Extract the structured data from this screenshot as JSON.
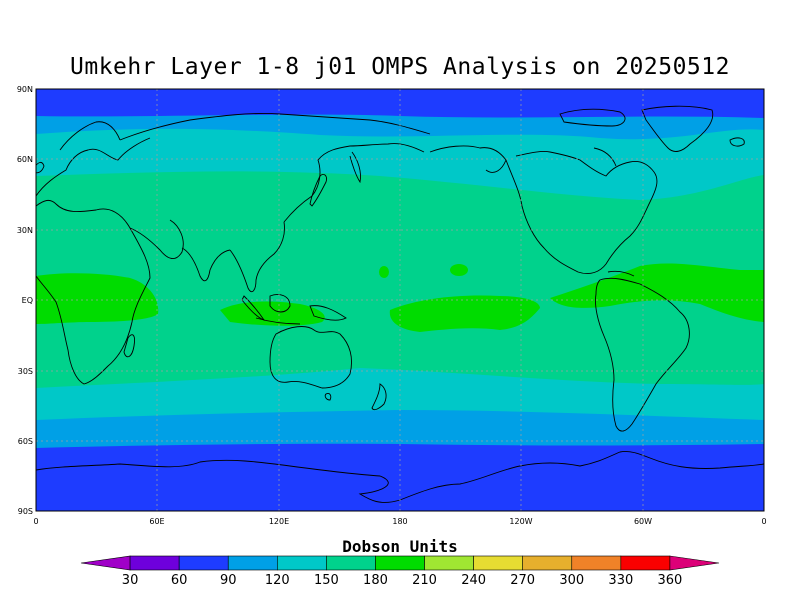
{
  "title": "Umkehr Layer 1-8 j01 OMPS Analysis on 20250512",
  "lat_labels": [
    "90N",
    "60N",
    "30N",
    "EQ",
    "30S",
    "60S",
    "90S"
  ],
  "lon_labels": [
    "0",
    "60E",
    "120E",
    "180",
    "120W",
    "60W",
    "0"
  ],
  "colorbar": {
    "title": "Dobson Units",
    "ticks": [
      "30",
      "60",
      "90",
      "120",
      "150",
      "180",
      "210",
      "240",
      "270",
      "300",
      "330",
      "360"
    ],
    "colors": [
      "#a000c8",
      "#6e00dc",
      "#1e3cff",
      "#00a0e6",
      "#00c8c8",
      "#00d28c",
      "#00dc00",
      "#a0e632",
      "#e6dc32",
      "#e6af2d",
      "#f08228",
      "#fa0000",
      "#dc0078"
    ]
  },
  "chart_data": {
    "type": "contour-map",
    "projection": "cylindrical equidistant",
    "lon_range": [
      0,
      360
    ],
    "lat_range": [
      -90,
      90
    ],
    "units": "Dobson Units",
    "levels": [
      30,
      60,
      90,
      120,
      150,
      180,
      210,
      240,
      270,
      300,
      330,
      360
    ],
    "zonal_bands": [
      {
        "lat_from": 90,
        "lat_to": 78,
        "range": "60-90"
      },
      {
        "lat_from": 78,
        "lat_to": 70,
        "range": "90-120"
      },
      {
        "lat_from": 70,
        "lat_to": 52,
        "range": "120-150"
      },
      {
        "lat_from": 52,
        "lat_to": -30,
        "range": "150-180"
      },
      {
        "lat_from": -30,
        "lat_to": -48,
        "range": "120-150"
      },
      {
        "lat_from": -48,
        "lat_to": -60,
        "range": "90-120"
      },
      {
        "lat_from": -60,
        "lat_to": -90,
        "range": "60-90"
      }
    ],
    "equatorial_maxima": "180-210 DU near the equator over Africa/Atlantic, Indonesia, central Pacific and South America"
  }
}
